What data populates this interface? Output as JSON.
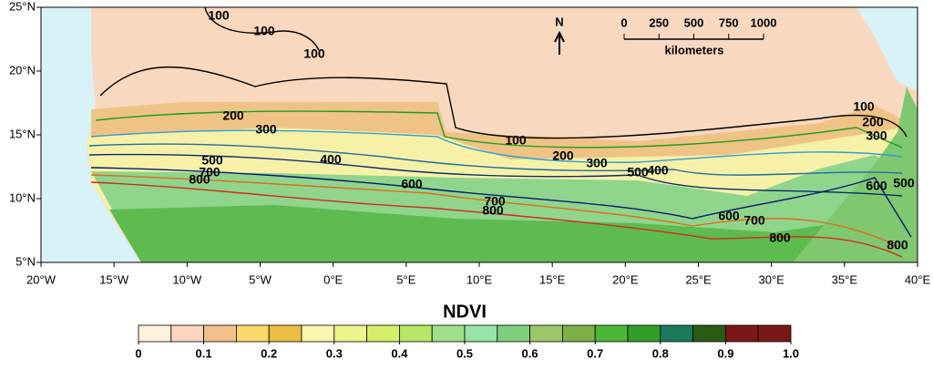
{
  "map": {
    "lonlim": [
      -20,
      40
    ],
    "latlim": [
      5,
      25
    ],
    "lon_ticks": [
      {
        "value": -20,
        "label": "20°W"
      },
      {
        "value": -15,
        "label": "15°W"
      },
      {
        "value": -10,
        "label": "10°W"
      },
      {
        "value": -5,
        "label": "5°W"
      },
      {
        "value": 0,
        "label": "0°E"
      },
      {
        "value": 5,
        "label": "5°E"
      },
      {
        "value": 10,
        "label": "10°E"
      },
      {
        "value": 15,
        "label": "15°E"
      },
      {
        "value": 20,
        "label": "20°E"
      },
      {
        "value": 25,
        "label": "25°E"
      },
      {
        "value": 30,
        "label": "30°E"
      },
      {
        "value": 35,
        "label": "35°E"
      },
      {
        "value": 40,
        "label": "40°E"
      }
    ],
    "lat_ticks": [
      {
        "value": 25,
        "label": "25°N"
      },
      {
        "value": 20,
        "label": "20°N"
      },
      {
        "value": 15,
        "label": "15°N"
      },
      {
        "value": 10,
        "label": "10°N"
      },
      {
        "value": 5,
        "label": "5°N"
      }
    ],
    "contours": [
      {
        "level": 100,
        "color": "#000000"
      },
      {
        "level": 200,
        "color": "#1f9e1f"
      },
      {
        "level": 300,
        "color": "#2f9fd4"
      },
      {
        "level": 400,
        "color": "#1f6fa0"
      },
      {
        "level": 500,
        "color": "#0c2c6c"
      },
      {
        "level": 600,
        "color": "#0a1870"
      },
      {
        "level": 700,
        "color": "#e06a20"
      },
      {
        "level": 800,
        "color": "#d42a20"
      }
    ],
    "north": "N",
    "scale": {
      "ticks": [
        0,
        250,
        500,
        750,
        1000
      ],
      "unit": "kilometers"
    }
  },
  "colorbar": {
    "title": "NDVI",
    "lim": [
      0,
      1
    ],
    "colors": [
      "#fef1de",
      "#fbd7bd",
      "#f2c08a",
      "#f8d96a",
      "#ebbf42",
      "#fbf6b0",
      "#eef58c",
      "#d5ef6a",
      "#b7e766",
      "#a0df8a",
      "#95e5a8",
      "#7ecf7e",
      "#9cc66a",
      "#7daf48",
      "#4cb637",
      "#329e28",
      "#1a7a5a",
      "#2a5a14",
      "#7a1818",
      "#7a1818"
    ],
    "ticks": [
      0,
      0.1,
      0.2,
      0.3,
      0.4,
      0.5,
      0.6,
      0.7,
      0.8,
      0.9,
      {
        "value": 1,
        "label": "1.0"
      }
    ]
  }
}
